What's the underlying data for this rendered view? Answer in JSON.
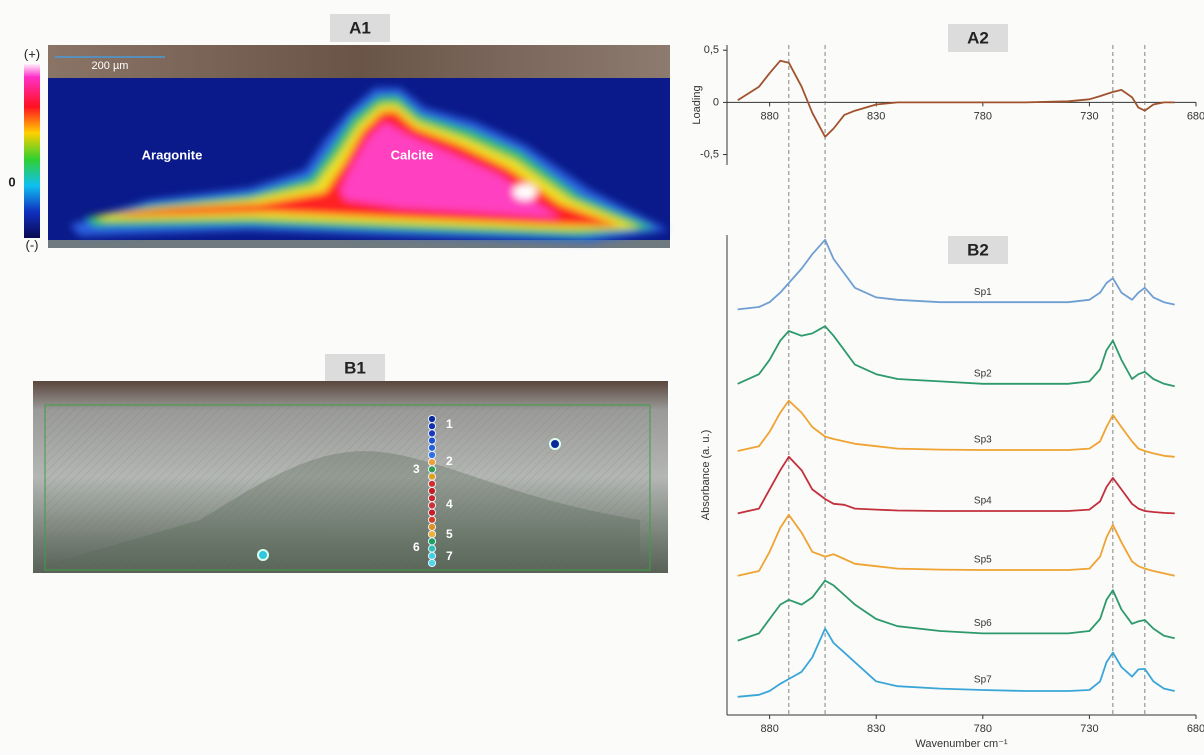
{
  "chart_data": [
    {
      "type": "line",
      "title": "A2",
      "y_label": "Loading",
      "x": [
        895,
        885,
        880,
        875,
        871,
        865,
        860,
        854,
        850,
        845,
        840,
        830,
        820,
        800,
        780,
        760,
        740,
        730,
        725,
        722,
        719,
        715,
        710,
        707,
        704,
        700,
        695,
        690
      ],
      "xlim": [
        900,
        680
      ],
      "xticks": [
        880,
        830,
        780,
        730,
        680
      ],
      "ylim": [
        -0.6,
        0.55
      ],
      "yticks": [
        {
          "value": 0.5,
          "label": "0,5"
        },
        0,
        {
          "value": -0.5,
          "label": "-0,5"
        }
      ],
      "series": [
        {
          "color": "#a0522d",
          "values": [
            0.02,
            0.15,
            0.28,
            0.4,
            0.38,
            0.15,
            -0.1,
            -0.33,
            -0.25,
            -0.12,
            -0.08,
            -0.02,
            0,
            0,
            0,
            0,
            0.01,
            0.03,
            0.06,
            0.08,
            0.1,
            0.12,
            0.05,
            -0.05,
            -0.08,
            -0.02,
            0,
            0
          ]
        }
      ],
      "reference_lines": [
        871,
        854,
        719,
        704
      ]
    },
    {
      "type": "line",
      "title": "B2",
      "x_label": "Wavenumber cm⁻¹",
      "y_label": "Absorbance (a. u.)",
      "x": [
        895,
        885,
        880,
        875,
        871,
        865,
        860,
        854,
        850,
        845,
        840,
        830,
        820,
        800,
        780,
        760,
        740,
        730,
        725,
        722,
        719,
        715,
        710,
        707,
        704,
        700,
        695,
        690
      ],
      "xlim": [
        900,
        680
      ],
      "xticks": [
        880,
        830,
        780,
        730,
        680
      ],
      "ylim": [
        0,
        100
      ],
      "series": [
        {
          "name": "Sp1",
          "color": "#6f9fd2",
          "values": [
            84.5,
            85,
            86,
            88,
            90,
            93,
            96,
            99,
            95,
            92,
            89,
            87,
            86.5,
            86,
            86,
            86,
            86,
            86.5,
            88,
            90,
            91,
            88,
            86.5,
            88,
            89,
            87,
            86,
            85.5
          ]
        },
        {
          "name": "Sp2",
          "color": "#2e9a6c",
          "values": [
            69,
            71,
            74,
            78,
            80,
            79,
            79.5,
            81,
            79,
            76,
            73,
            71,
            70,
            69.5,
            69,
            69,
            69,
            69.5,
            72,
            76,
            78,
            74,
            70,
            71,
            71.5,
            70,
            69,
            68.5
          ]
        },
        {
          "name": "Sp3",
          "color": "#efa332",
          "values": [
            55,
            56,
            59,
            63,
            65.5,
            63,
            60,
            58,
            57.5,
            57,
            56.5,
            56,
            55.5,
            55.3,
            55.2,
            55.2,
            55.2,
            55.5,
            57,
            60,
            62.5,
            60,
            57,
            55.5,
            55,
            54.5,
            54,
            53.8
          ]
        },
        {
          "name": "Sp4",
          "color": "#c2303c",
          "values": [
            42,
            43,
            47,
            51,
            53.8,
            51,
            47,
            45,
            44,
            43.8,
            43,
            42.8,
            42.6,
            42.5,
            42.5,
            42.5,
            42.5,
            42.8,
            44.5,
            47.5,
            49.4,
            47,
            44,
            43,
            42.5,
            42.3,
            42.1,
            42
          ]
        },
        {
          "name": "Sp5",
          "color": "#efa332",
          "values": [
            29,
            30,
            34,
            39,
            41.7,
            38,
            34,
            33,
            33.5,
            32.5,
            31.5,
            31,
            30.5,
            30.3,
            30.2,
            30.2,
            30.2,
            30.5,
            33,
            37,
            39.6,
            36,
            32,
            31,
            30.5,
            30,
            29.5,
            29
          ]
        },
        {
          "name": "Sp6",
          "color": "#2e9a6c",
          "values": [
            15.5,
            17,
            20,
            23,
            24,
            23,
            24.5,
            28,
            27,
            25,
            23,
            20,
            18.5,
            17.5,
            17,
            17,
            17,
            17.5,
            20,
            24,
            26,
            22,
            19,
            19.5,
            19.8,
            18,
            16.5,
            16
          ]
        },
        {
          "name": "Sp7",
          "color": "#3aa6d8",
          "values": [
            3.8,
            4.2,
            5,
            6.5,
            7.5,
            9,
            12,
            18,
            15,
            13,
            11,
            7,
            6,
            5.5,
            5.2,
            5,
            5,
            5.2,
            7,
            11,
            13,
            10,
            8,
            9.5,
            9.6,
            7,
            5.5,
            5
          ]
        }
      ]
    }
  ],
  "images": {
    "a1": {
      "title": "A1",
      "scale_bar": "200 µm",
      "colorbar_top": "(+)",
      "colorbar_middle": "0",
      "colorbar_bottom": "(-)",
      "labels": [
        "Aragonite",
        "Calcite"
      ]
    },
    "b1": {
      "title": "B1",
      "point_labels": [
        "1",
        "2",
        "3",
        "4",
        "5",
        "6",
        "7"
      ]
    }
  }
}
